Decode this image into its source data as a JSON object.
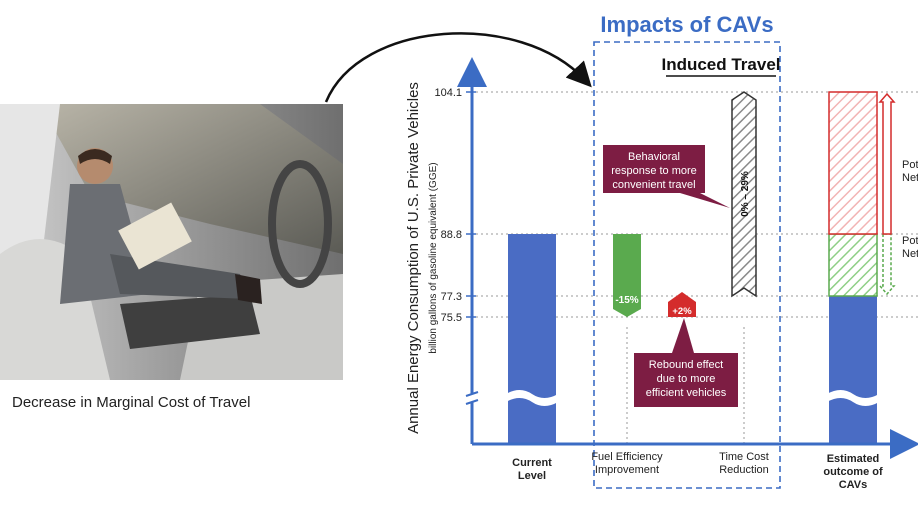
{
  "photo": {
    "caption": "Decrease in Marginal Cost of Travel"
  },
  "chart_data": {
    "type": "bar",
    "title": "Impacts of CAVs",
    "subtitle": "Induced Travel",
    "ylabel": "Annual Energy Consumption of U.S. Private Vehicles",
    "ylabel_sub": "billion gallons of gasoline equivalent (GGE)",
    "yticks": [
      104.1,
      88.8,
      77.3,
      75.5
    ],
    "ytick_labels": [
      "104.1",
      "88.8",
      "77.3",
      "75.5"
    ],
    "axis_break": true,
    "categories": [
      {
        "lines": [
          "Current",
          "Level"
        ],
        "bold": true
      },
      {
        "lines": [
          "Fuel Efficiency",
          "Improvement"
        ],
        "bold": false
      },
      {
        "lines": [
          "Time Cost",
          "Reduction"
        ],
        "bold": false
      },
      {
        "lines": [
          "Estimated",
          "outcome of",
          "CAVs"
        ],
        "bold": true
      }
    ],
    "bars": [
      {
        "category": "Current Level",
        "from": 0,
        "to": 88.8,
        "kind": "solid"
      },
      {
        "category": "Fuel Efficiency Improvement",
        "from": 88.8,
        "to": 75.5,
        "kind": "decrease",
        "label": "-15%"
      },
      {
        "category": "Fuel Efficiency Improvement",
        "from": 75.5,
        "to": 77.3,
        "kind": "rebound",
        "label": "+2%"
      },
      {
        "category": "Time Cost Reduction",
        "from": 77.3,
        "to": 104.1,
        "kind": "range",
        "label": "0% – 29%"
      },
      {
        "category": "Estimated outcome of CAVs",
        "from": 0,
        "to": 77.3,
        "kind": "solid"
      },
      {
        "category": "Estimated outcome of CAVs",
        "from": 77.3,
        "to": 88.8,
        "kind": "net-decrease"
      },
      {
        "category": "Estimated outcome of CAVs",
        "from": 88.8,
        "to": 104.1,
        "kind": "net-increase"
      }
    ],
    "annotations": [
      {
        "text": [
          "Behavioral",
          "response to more",
          "convenient travel"
        ]
      },
      {
        "text": [
          "Rebound effect",
          "due to more",
          "efficient vehicles"
        ]
      }
    ],
    "side_labels": [
      {
        "lines": [
          "Pot",
          "Net"
        ]
      },
      {
        "lines": [
          "Pot",
          "Net"
        ]
      }
    ],
    "colors": {
      "axis": "#3b6cc4",
      "bar_blue": "#4a6cc4",
      "green": "#5aaa4e",
      "red": "#d42c2c",
      "maroon": "#7d1d43",
      "range": "#333333"
    }
  }
}
